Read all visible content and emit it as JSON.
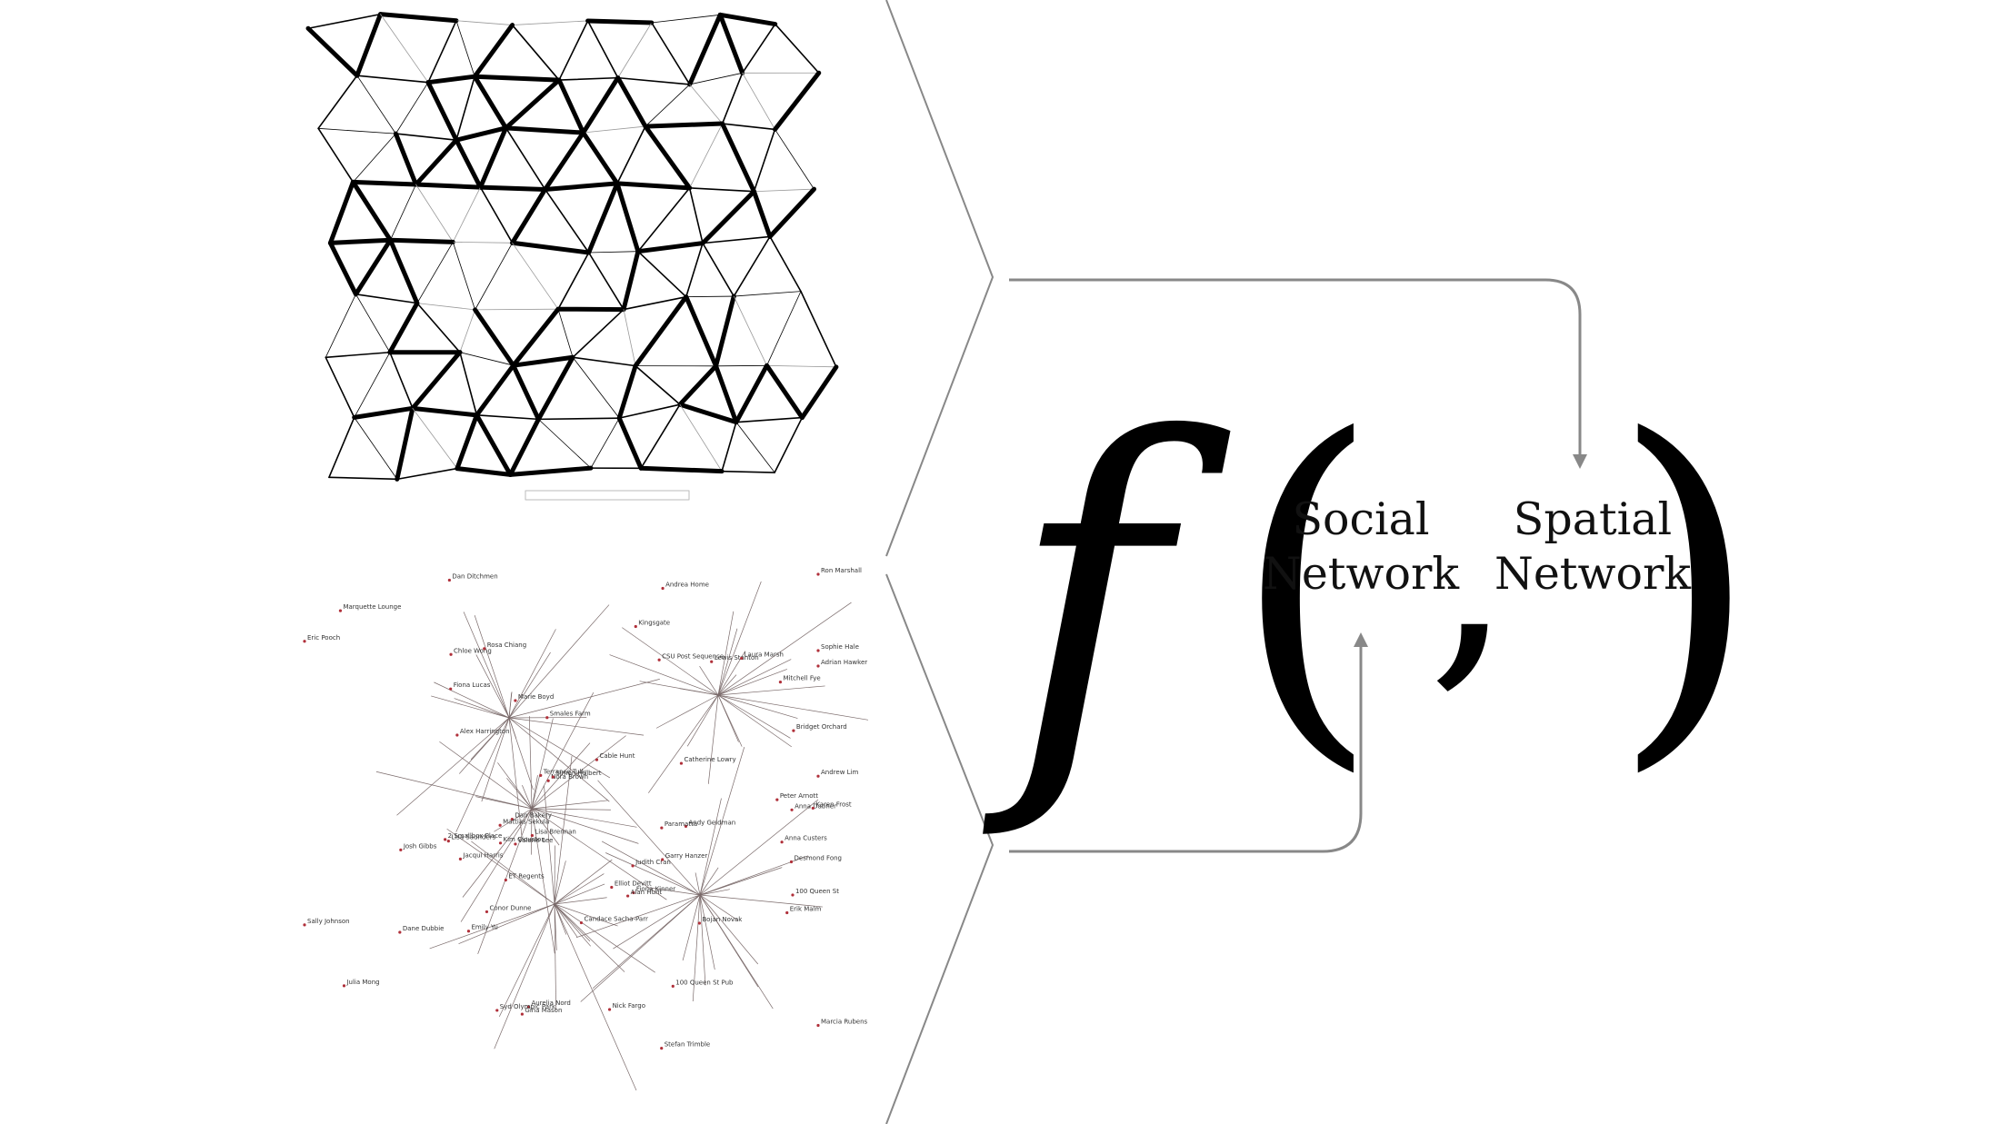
{
  "formula": {
    "function_symbol": "f",
    "open_paren": "(",
    "comma": ",",
    "close_paren": ")",
    "arg1": {
      "line1": "Social",
      "line2": "Network"
    },
    "arg2": {
      "line1": "Spatial",
      "line2": "Network"
    }
  },
  "social_graph_labels": [
    "Smales Farm",
    "2 Smallbox Place",
    "Judith Cran",
    "Candace Sacha-Parr",
    "Dan Bakery",
    "Julia Mong",
    "Anna Custers",
    "Nick Fargo",
    "Dan Ditchmen",
    "Andrea Home",
    "Chloe Wong",
    "Stefan Trimble",
    "Fiona Kinner",
    "Valerie Lee",
    "Lewis Stanton",
    "Terrance Tully",
    "ET Regents",
    "Marcia Rubens",
    "Alan Hunt",
    "Rosa Chiang",
    "Nora Brown",
    "Emily Yu",
    "Bojan Novak",
    "Elliot Devitt",
    "Laura Marsh",
    "Mattias Sekula",
    "100 Queen St Pub",
    "Jacqui Harris",
    "Alex Harrington",
    "Adrian Hawker",
    "Fiona Lucas",
    "Dane Dubbie",
    "Andy Geldman",
    "Marquette Lounge",
    "Garry Hanzer",
    "Sally Johnson",
    "100 Queen St",
    "Mitchell Fye",
    "Eric Pooch",
    "Peter Arnott",
    "CSU Post Sequence",
    "Anna Dabner",
    "Cable Hunt",
    "Kim Clouston",
    "Ron Marshall",
    "Kingsgate",
    "Aurelia Nord",
    "Karen Frost",
    "Bridget Orchard",
    "Sophie Hale",
    "Lisa Saunders",
    "Josh Gibbs",
    "Paramatta",
    "Simon Hulbert",
    "Marie Boyd",
    "Erik Malm",
    "Conor Dunne",
    "Syd Olympic Park",
    "Lisa Brennan",
    "Andrew Lim",
    "Desmond Fong",
    "Catherine Lowry",
    "Gina Mason"
  ]
}
